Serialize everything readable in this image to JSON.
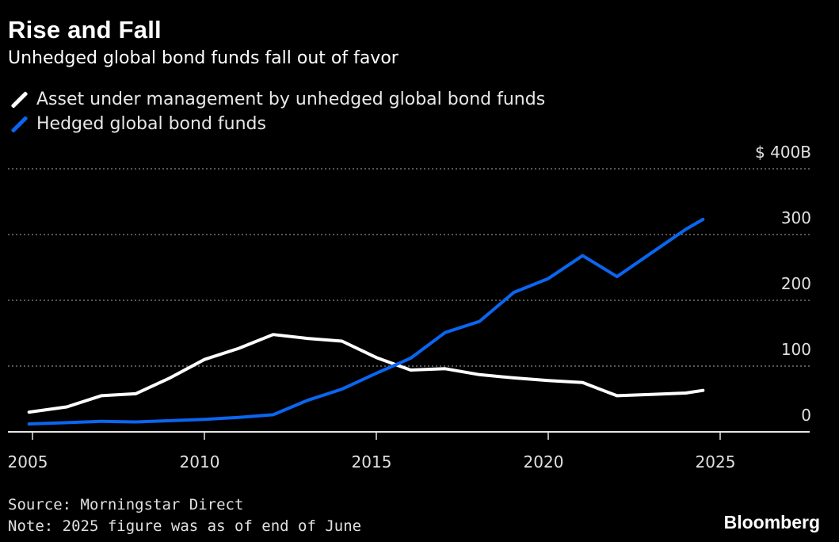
{
  "header": {
    "title": "Rise and Fall",
    "subtitle": "Unhedged global bond funds fall out of favor"
  },
  "legend": [
    {
      "label": "Asset under management by unhedged global bond funds",
      "color": "#ffffff"
    },
    {
      "label": "Hedged global bond funds",
      "color": "#0a66f0"
    }
  ],
  "footer": {
    "source": "Source: Morningstar Direct",
    "note": "Note: 2025 figure was as of end of June",
    "brand": "Bloomberg"
  },
  "chart_data": {
    "type": "line",
    "ylim": [
      0,
      400
    ],
    "xlim": [
      2004.9,
      2026.8
    ],
    "y_ticks": [
      {
        "value": 400,
        "label": "$ 400B"
      },
      {
        "value": 300,
        "label": "300"
      },
      {
        "value": 200,
        "label": "200"
      },
      {
        "value": 100,
        "label": "100"
      },
      {
        "value": 0,
        "label": "0"
      }
    ],
    "x_ticks": [
      {
        "value": 2005,
        "label": "2005"
      },
      {
        "value": 2010,
        "label": "2010"
      },
      {
        "value": 2015,
        "label": "2015"
      },
      {
        "value": 2020,
        "label": "2020"
      },
      {
        "value": 2025,
        "label": "2025"
      }
    ],
    "grid": "horizontal dotted",
    "series": [
      {
        "name": "Asset under management by unhedged global bond funds",
        "color": "#ffffff",
        "points": [
          [
            2004.9,
            30
          ],
          [
            2006.0,
            38
          ],
          [
            2007.0,
            55
          ],
          [
            2008.0,
            58
          ],
          [
            2009.0,
            82
          ],
          [
            2010.0,
            110
          ],
          [
            2011.0,
            127
          ],
          [
            2012.0,
            148
          ],
          [
            2013.0,
            142
          ],
          [
            2014.0,
            138
          ],
          [
            2015.0,
            113
          ],
          [
            2016.0,
            94
          ],
          [
            2017.0,
            96
          ],
          [
            2018.0,
            87
          ],
          [
            2019.0,
            82
          ],
          [
            2020.0,
            78
          ],
          [
            2021.0,
            75
          ],
          [
            2022.0,
            55
          ],
          [
            2023.0,
            57
          ],
          [
            2024.0,
            59
          ],
          [
            2024.5,
            63
          ]
        ]
      },
      {
        "name": "Hedged global bond funds",
        "color": "#0a66f0",
        "points": [
          [
            2004.9,
            12
          ],
          [
            2006.0,
            14
          ],
          [
            2007.0,
            16
          ],
          [
            2008.0,
            15
          ],
          [
            2009.0,
            17
          ],
          [
            2010.0,
            19
          ],
          [
            2011.0,
            22
          ],
          [
            2012.0,
            26
          ],
          [
            2013.0,
            48
          ],
          [
            2014.0,
            65
          ],
          [
            2015.0,
            89
          ],
          [
            2016.0,
            112
          ],
          [
            2017.0,
            151
          ],
          [
            2018.0,
            168
          ],
          [
            2019.0,
            212
          ],
          [
            2020.0,
            233
          ],
          [
            2021.0,
            268
          ],
          [
            2022.0,
            236
          ],
          [
            2023.0,
            272
          ],
          [
            2024.0,
            308
          ],
          [
            2024.5,
            323
          ]
        ]
      }
    ]
  }
}
